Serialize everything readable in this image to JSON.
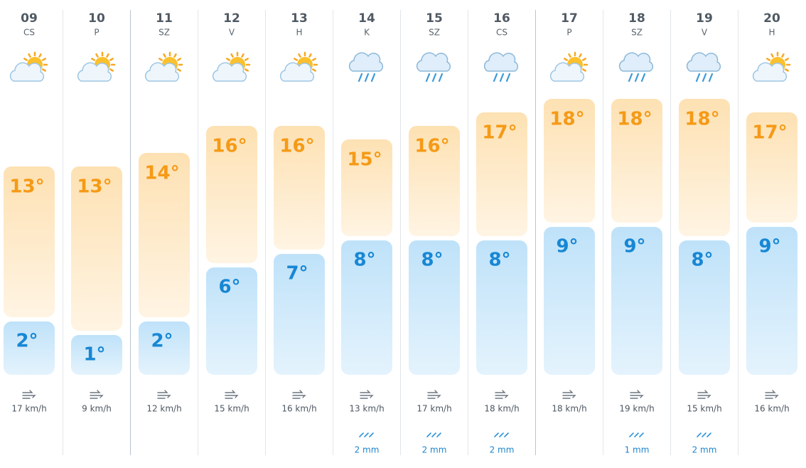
{
  "days": [
    {
      "day": "09",
      "weekday": "CS",
      "icon": "partly-cloudy",
      "high": 13,
      "high_label": "13°",
      "low": 2,
      "low_label": "2°",
      "wind": "17 km/h"
    },
    {
      "day": "10",
      "weekday": "P",
      "icon": "partly-cloudy",
      "high": 13,
      "high_label": "13°",
      "low": 1,
      "low_label": "1°",
      "wind": "9 km/h"
    },
    {
      "day": "11",
      "weekday": "SZ",
      "icon": "partly-cloudy",
      "high": 14,
      "high_label": "14°",
      "low": 2,
      "low_label": "2°",
      "wind": "12 km/h"
    },
    {
      "day": "12",
      "weekday": "V",
      "icon": "partly-cloudy",
      "high": 16,
      "high_label": "16°",
      "low": 6,
      "low_label": "6°",
      "wind": "15 km/h"
    },
    {
      "day": "13",
      "weekday": "H",
      "icon": "partly-cloudy",
      "high": 16,
      "high_label": "16°",
      "low": 7,
      "low_label": "7°",
      "wind": "16 km/h"
    },
    {
      "day": "14",
      "weekday": "K",
      "icon": "rain",
      "high": 15,
      "high_label": "15°",
      "low": 8,
      "low_label": "8°",
      "wind": "13 km/h",
      "rain": "2 mm"
    },
    {
      "day": "15",
      "weekday": "SZ",
      "icon": "rain",
      "high": 16,
      "high_label": "16°",
      "low": 8,
      "low_label": "8°",
      "wind": "17 km/h",
      "rain": "2 mm"
    },
    {
      "day": "16",
      "weekday": "CS",
      "icon": "rain",
      "high": 17,
      "high_label": "17°",
      "low": 8,
      "low_label": "8°",
      "wind": "18 km/h",
      "rain": "2 mm"
    },
    {
      "day": "17",
      "weekday": "P",
      "icon": "partly-cloudy",
      "high": 18,
      "high_label": "18°",
      "low": 9,
      "low_label": "9°",
      "wind": "18 km/h"
    },
    {
      "day": "18",
      "weekday": "SZ",
      "icon": "rain",
      "high": 18,
      "high_label": "18°",
      "low": 9,
      "low_label": "9°",
      "wind": "19 km/h",
      "rain": "1 mm"
    },
    {
      "day": "19",
      "weekday": "V",
      "icon": "rain",
      "high": 18,
      "high_label": "18°",
      "low": 8,
      "low_label": "8°",
      "wind": "15 km/h",
      "rain": "2 mm"
    },
    {
      "day": "20",
      "weekday": "H",
      "icon": "partly-cloudy",
      "high": 17,
      "high_label": "17°",
      "low": 9,
      "low_label": "9°",
      "wind": "16 km/h"
    }
  ]
}
